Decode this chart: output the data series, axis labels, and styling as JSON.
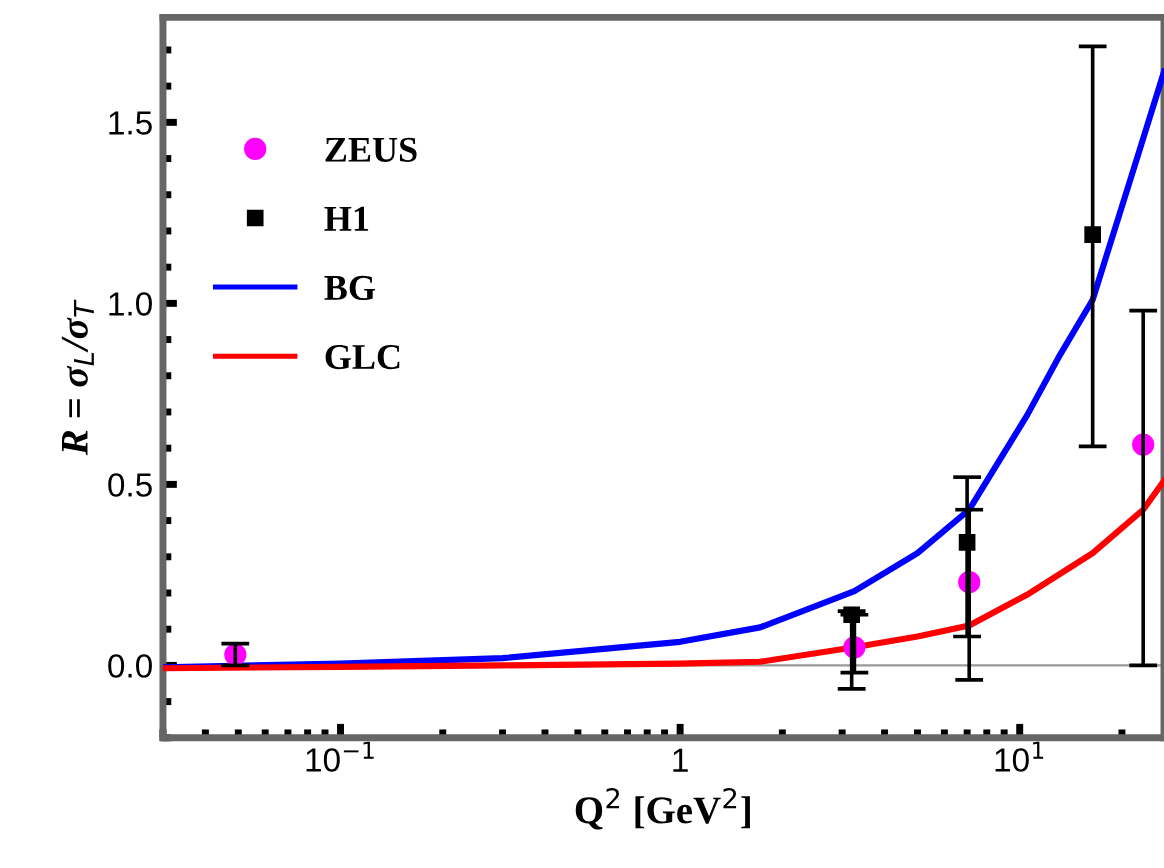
{
  "chart_data": {
    "type": "scatter",
    "xlabel": "Q$^{2}$ [GeV$^{2}$]",
    "ylabel": "R = σ$_{L}$/σ$_{T}$",
    "log": "x",
    "xlim": [
      0.03,
      26.6
    ],
    "ylim": [
      -0.2,
      1.79
    ],
    "xticks": [
      {
        "value": 0.1,
        "label": "10$^{−1}$"
      },
      1,
      {
        "value": 10,
        "label": "10$^{1}$"
      }
    ],
    "yticks": [
      {
        "value": 0,
        "label": "0.0"
      },
      0.5,
      {
        "value": 1,
        "label": "1.0"
      },
      1.5
    ],
    "grid": false,
    "legend": "top left",
    "ref_lines": [
      {
        "axis": "y",
        "value": 0,
        "color": "#999999",
        "line_style": "solid"
      }
    ],
    "series": [
      {
        "name": "ZEUS",
        "marker": "circle",
        "color": "#ff00ff",
        "x": [
          0.049,
          3.26,
          7.1,
          23.1
        ],
        "values": [
          0.03,
          0.05,
          0.23,
          0.61
        ],
        "errors": [
          [
            0.0,
            0.06
          ],
          [
            -0.02,
            0.14
          ],
          [
            -0.04,
            0.43
          ],
          [
            0.0,
            0.98
          ]
        ]
      },
      {
        "name": "H1",
        "marker": "square",
        "color": "#000000",
        "x": [
          3.2,
          7.0,
          16.4
        ],
        "values": [
          0.14,
          0.34,
          1.19
        ],
        "errors": [
          [
            -0.065,
            0.15
          ],
          [
            0.08,
            0.52
          ],
          [
            0.605,
            1.71
          ]
        ]
      },
      {
        "name": "BG",
        "type": "line",
        "marker": "none",
        "line_style": "solid",
        "color": "#0000ff",
        "x": [
          0.03,
          0.1,
          0.3,
          1,
          1.72,
          3.26,
          5,
          7.1,
          10.5,
          13,
          16.4,
          21.8,
          26.6
        ],
        "values": [
          -0.005,
          0.005,
          0.02,
          0.065,
          0.105,
          0.205,
          0.31,
          0.43,
          0.69,
          0.85,
          1.01,
          1.38,
          1.64
        ]
      },
      {
        "name": "GLC",
        "type": "line",
        "marker": "none",
        "line_style": "solid",
        "color": "#ff0000",
        "x": [
          0.03,
          0.1,
          0.3,
          1,
          1.72,
          3.26,
          5,
          7.1,
          10.5,
          13,
          16.4,
          23.1,
          26.6
        ],
        "values": [
          -0.008,
          -0.004,
          0.0,
          0.005,
          0.01,
          0.05,
          0.08,
          0.11,
          0.195,
          0.25,
          0.31,
          0.43,
          0.51
        ]
      }
    ]
  }
}
